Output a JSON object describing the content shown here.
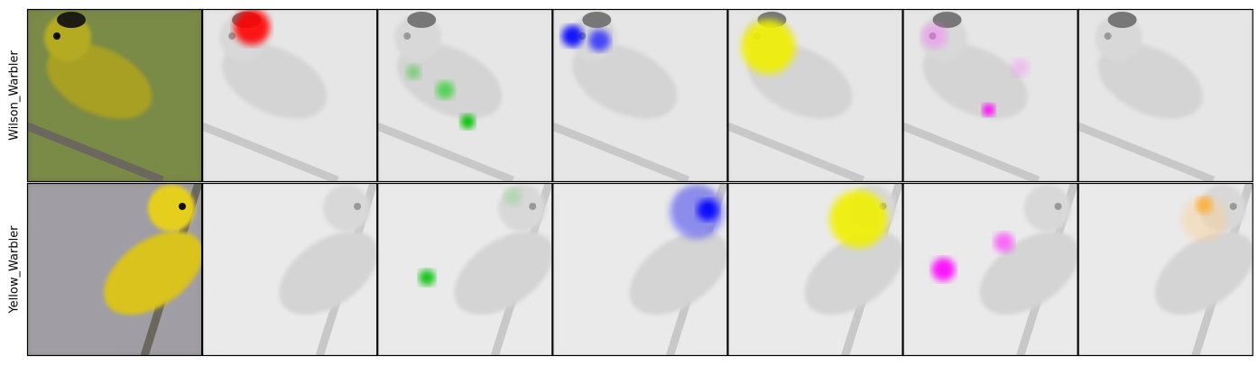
{
  "rows": [
    {
      "label": "Wilson_Warbler"
    },
    {
      "label": "Yellow_Warbler"
    }
  ]
}
